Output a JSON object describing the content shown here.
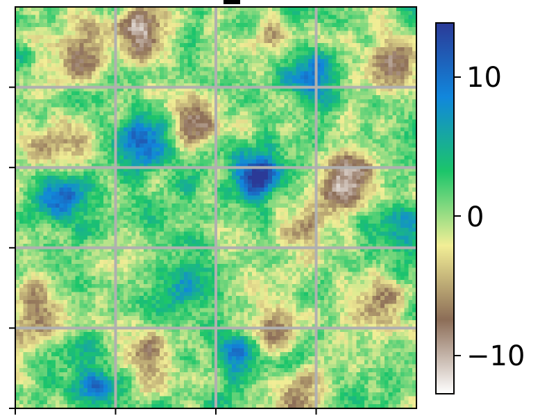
{
  "chart_data": {
    "type": "heatmap",
    "grid": true,
    "grid_color": "#b0b0b0",
    "colormap": "terrain_r",
    "colormap_stops": [
      "#ffffff",
      "#8c6d57",
      "#f2ee96",
      "#1cc56a",
      "#1187dc",
      "#2b3a97"
    ],
    "value_range": [
      -13,
      13
    ],
    "colorbar": {
      "ticks": [
        10,
        0,
        -10
      ],
      "tick_labels": [
        "10",
        "0",
        "−10"
      ]
    },
    "features": [
      {
        "label": "peak",
        "x": 0.6,
        "y": 0.42,
        "value": 13
      },
      {
        "label": "peak",
        "x": 0.11,
        "y": 0.47,
        "value": 11
      },
      {
        "label": "peak",
        "x": 0.31,
        "y": 0.33,
        "value": 11
      },
      {
        "label": "peak",
        "x": 0.73,
        "y": 0.19,
        "value": 7
      },
      {
        "label": "peak",
        "x": 0.56,
        "y": 0.86,
        "value": 8
      },
      {
        "label": "peak",
        "x": 0.43,
        "y": 0.69,
        "value": 7
      },
      {
        "label": "peak",
        "x": 0.96,
        "y": 0.56,
        "value": 7
      },
      {
        "label": "peak",
        "x": 0.2,
        "y": 0.95,
        "value": 7
      },
      {
        "label": "trough",
        "x": 0.32,
        "y": 0.06,
        "value": -11
      },
      {
        "label": "trough",
        "x": 0.83,
        "y": 0.44,
        "value": -12
      },
      {
        "label": "trough",
        "x": 0.1,
        "y": 0.34,
        "value": -8
      },
      {
        "label": "trough",
        "x": 0.95,
        "y": 0.14,
        "value": -9
      },
      {
        "label": "trough",
        "x": 0.45,
        "y": 0.29,
        "value": -7
      },
      {
        "label": "trough",
        "x": 0.63,
        "y": 0.79,
        "value": -6
      },
      {
        "label": "trough",
        "x": 0.06,
        "y": 0.77,
        "value": -8
      },
      {
        "label": "trough",
        "x": 0.15,
        "y": 0.13,
        "value": -7
      },
      {
        "label": "trough",
        "x": 0.33,
        "y": 0.88,
        "value": -7
      },
      {
        "label": "trough",
        "x": 0.72,
        "y": 0.55,
        "value": -5
      },
      {
        "label": "trough",
        "x": 0.89,
        "y": 0.74,
        "value": -7
      },
      {
        "label": "trough",
        "x": 0.7,
        "y": 0.98,
        "value": -6
      },
      {
        "label": "trough",
        "x": 0.64,
        "y": 0.06,
        "value": -6
      }
    ]
  }
}
